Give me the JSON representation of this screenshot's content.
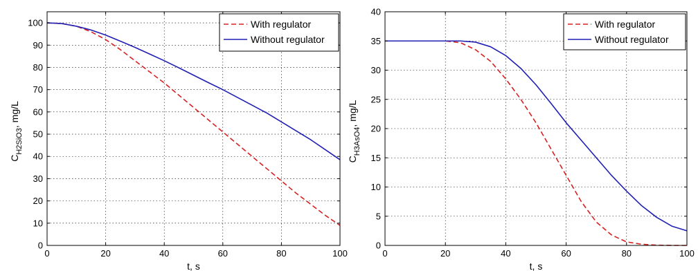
{
  "chart_data": [
    {
      "type": "line",
      "title": "",
      "xlabel": "t, s",
      "ylabel": {
        "main": "C",
        "sub": "H2SiO3",
        "suffix": ", mg/L"
      },
      "xlim": [
        0,
        100
      ],
      "ylim": [
        0,
        105
      ],
      "xticks": [
        0,
        20,
        40,
        60,
        80,
        100
      ],
      "yticks": [
        0,
        10,
        20,
        30,
        40,
        50,
        60,
        70,
        80,
        90,
        100
      ],
      "grid": true,
      "legend_position": "top-right",
      "x": [
        0,
        5,
        10,
        15,
        20,
        25,
        30,
        35,
        40,
        45,
        50,
        55,
        60,
        65,
        70,
        75,
        80,
        85,
        90,
        95,
        100
      ],
      "series": [
        {
          "name": "With regulator",
          "color": "#d62020",
          "dash": true,
          "values": [
            100,
            99.7,
            98.5,
            96,
            92.5,
            88,
            83,
            78,
            73,
            67.5,
            62,
            56.5,
            51,
            45.5,
            40,
            34.5,
            29,
            23.5,
            18.5,
            13.5,
            9
          ]
        },
        {
          "name": "Without regulator",
          "color": "#1f1fb4",
          "dash": false,
          "values": [
            100,
            99.7,
            98.5,
            96.8,
            94.5,
            91.8,
            89,
            86,
            83,
            79.8,
            76.5,
            73.2,
            70,
            66.5,
            63,
            59.5,
            55.5,
            51.5,
            47.5,
            43,
            38.5
          ]
        }
      ]
    },
    {
      "type": "line",
      "title": "",
      "xlabel": "t, s",
      "ylabel": {
        "main": "C",
        "sub": "H3AsO4",
        "suffix": ", mg/L"
      },
      "xlim": [
        0,
        100
      ],
      "ylim": [
        0,
        40
      ],
      "xticks": [
        0,
        20,
        40,
        60,
        80,
        100
      ],
      "yticks": [
        0,
        5,
        10,
        15,
        20,
        25,
        30,
        35,
        40
      ],
      "grid": true,
      "legend_position": "top-right",
      "x": [
        0,
        5,
        10,
        15,
        20,
        25,
        30,
        35,
        40,
        45,
        50,
        55,
        60,
        65,
        70,
        75,
        80,
        85,
        90,
        95,
        100
      ],
      "series": [
        {
          "name": "With regulator",
          "color": "#d62020",
          "dash": true,
          "values": [
            35,
            35,
            35,
            35,
            35,
            34.7,
            33.5,
            31.5,
            28.5,
            25,
            21,
            16.5,
            12,
            7.5,
            4,
            1.8,
            0.6,
            0.2,
            0.05,
            0,
            0
          ]
        },
        {
          "name": "Without regulator",
          "color": "#1f1fb4",
          "dash": false,
          "values": [
            35,
            35,
            35,
            35,
            35,
            35,
            34.8,
            34,
            32.5,
            30.3,
            27.5,
            24.3,
            21,
            18,
            15,
            12,
            9.3,
            6.8,
            4.8,
            3.3,
            2.5
          ]
        }
      ]
    }
  ]
}
